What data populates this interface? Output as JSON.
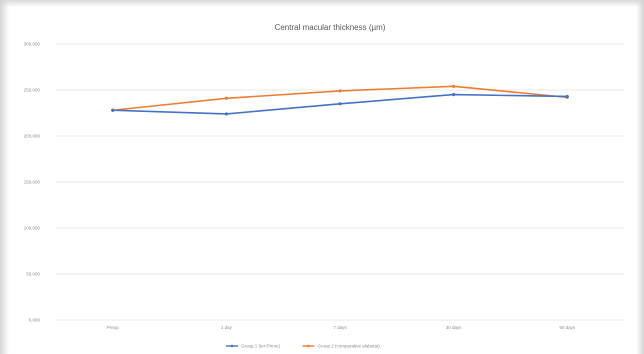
{
  "chart_data": {
    "type": "line",
    "title": "Central macular thickness (µm)",
    "categories": [
      "Preop",
      "1 day",
      "7 days",
      "30 days",
      "90 days"
    ],
    "yticks": [
      "0,000",
      "50,000",
      "100,000",
      "150,000",
      "200,000",
      "250,000",
      "300,000"
    ],
    "ylim": [
      0,
      300
    ],
    "grid": true,
    "legend_position": "bottom",
    "colors": {
      "series1": "#4472c4",
      "series2": "#ed7d31",
      "grid": "#e3e3e3"
    },
    "series": [
      {
        "name": "Group 1 (ter-Prime)",
        "values": [
          228,
          224,
          235,
          245,
          243
        ]
      },
      {
        "name": "Group 2 (comparative alabetat)",
        "values": [
          228,
          241,
          249,
          254,
          242
        ]
      }
    ]
  }
}
